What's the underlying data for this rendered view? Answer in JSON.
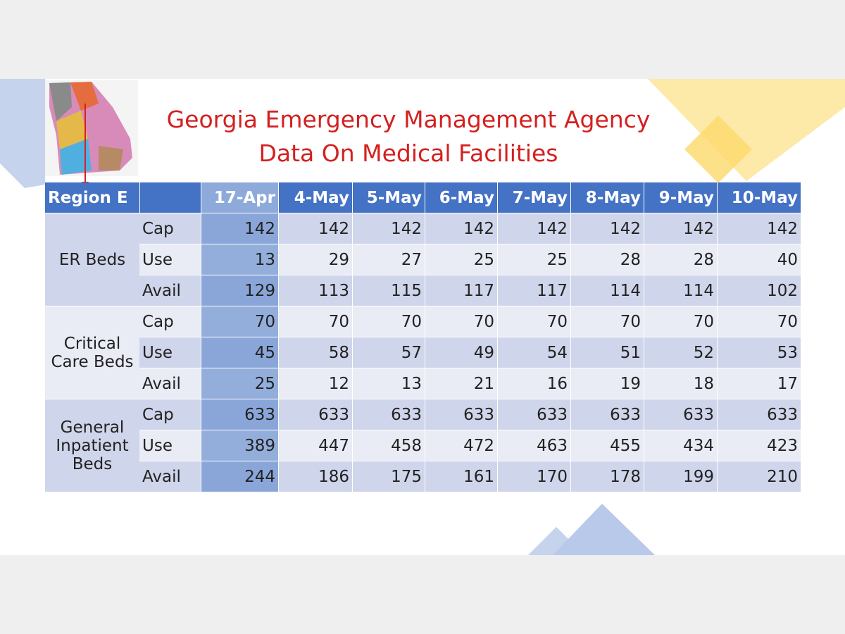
{
  "title": [
    "Georgia Emergency Management Agency",
    "Data On Medical Facilities"
  ],
  "table": {
    "header": {
      "region": "Region E",
      "dates": [
        "17-Apr",
        "4-May",
        "5-May",
        "6-May",
        "7-May",
        "8-May",
        "9-May",
        "10-May"
      ]
    },
    "groups": [
      {
        "label": [
          "ER Beds"
        ],
        "rows": [
          {
            "name": "Cap",
            "values": [
              142,
              142,
              142,
              142,
              142,
              142,
              142,
              142
            ]
          },
          {
            "name": "Use",
            "values": [
              13,
              29,
              27,
              25,
              25,
              28,
              28,
              40
            ]
          },
          {
            "name": "Avail",
            "values": [
              129,
              113,
              115,
              117,
              117,
              114,
              114,
              102
            ]
          }
        ]
      },
      {
        "label": [
          "Critical",
          "Care Beds"
        ],
        "rows": [
          {
            "name": "Cap",
            "values": [
              70,
              70,
              70,
              70,
              70,
              70,
              70,
              70
            ]
          },
          {
            "name": "Use",
            "values": [
              45,
              58,
              57,
              49,
              54,
              51,
              52,
              53
            ]
          },
          {
            "name": "Avail",
            "values": [
              25,
              12,
              13,
              21,
              16,
              19,
              18,
              17
            ]
          }
        ]
      },
      {
        "label": [
          "General",
          "Inpatient",
          "Beds"
        ],
        "rows": [
          {
            "name": "Cap",
            "values": [
              633,
              633,
              633,
              633,
              633,
              633,
              633,
              633
            ]
          },
          {
            "name": "Use",
            "values": [
              389,
              447,
              458,
              472,
              463,
              455,
              434,
              423
            ]
          },
          {
            "name": "Avail",
            "values": [
              244,
              186,
              175,
              161,
              170,
              178,
              199,
              210
            ]
          }
        ]
      }
    ]
  }
}
